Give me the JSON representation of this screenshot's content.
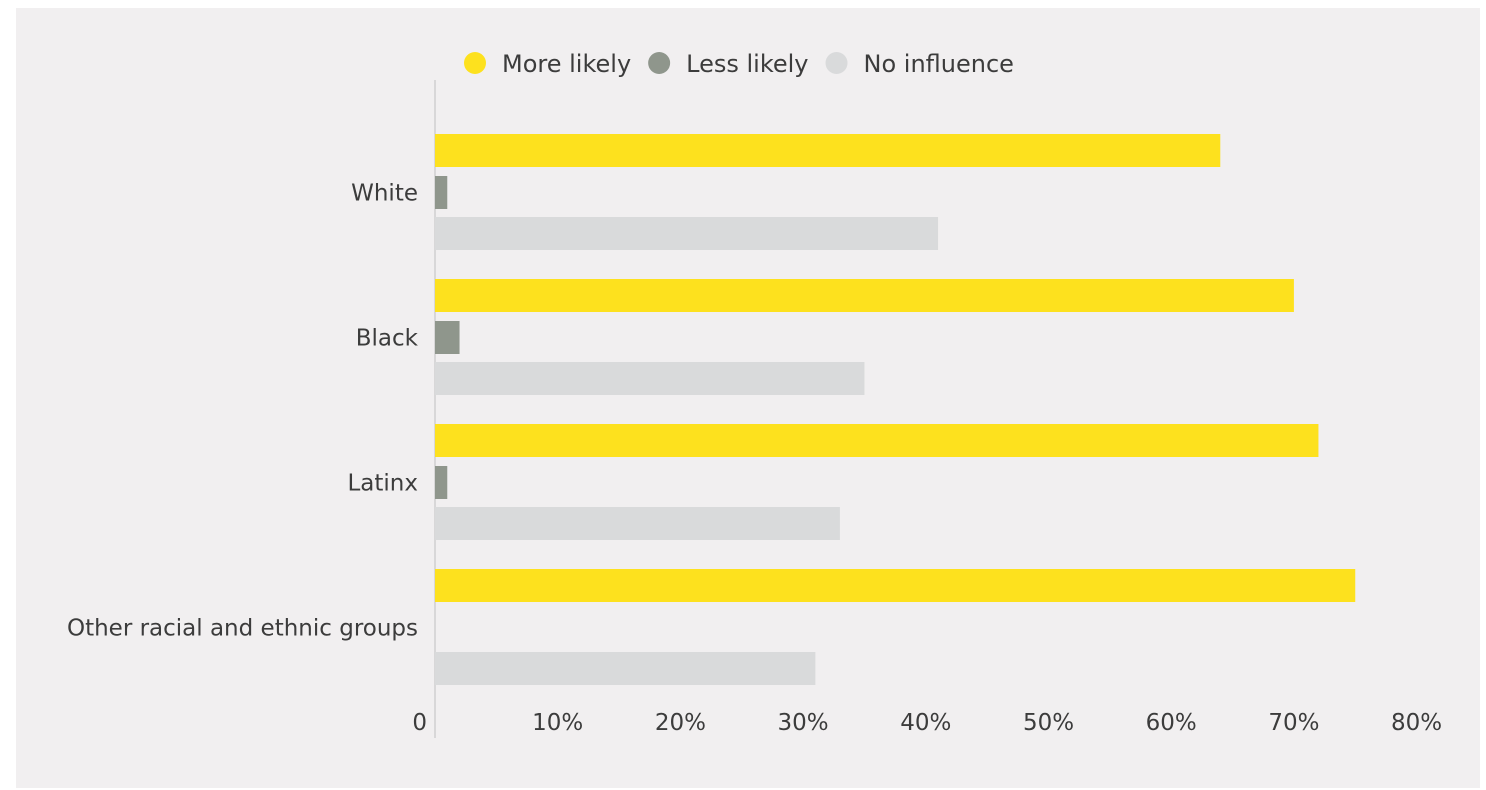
{
  "chart_data": {
    "type": "bar",
    "orientation": "horizontal",
    "categories": [
      "White",
      "Black",
      "Latinx",
      "Other racial and ethnic groups"
    ],
    "series": [
      {
        "name": "More likely",
        "color": "#fde11e",
        "values": [
          64,
          70,
          72,
          75
        ]
      },
      {
        "name": "Less likely",
        "color": "#8f968c",
        "values": [
          1,
          2,
          1,
          0
        ]
      },
      {
        "name": "No influence",
        "color": "#d9dadb",
        "values": [
          41,
          35,
          33,
          31
        ]
      }
    ],
    "xlim": [
      0,
      80
    ],
    "xticks": [
      {
        "value": 0,
        "label": "0"
      },
      {
        "value": 10,
        "label": "10%"
      },
      {
        "value": 20,
        "label": "20%"
      },
      {
        "value": 30,
        "label": "30%"
      },
      {
        "value": 40,
        "label": "40%"
      },
      {
        "value": 50,
        "label": "50%"
      },
      {
        "value": 60,
        "label": "60%"
      },
      {
        "value": 70,
        "label": "70%"
      },
      {
        "value": 80,
        "label": "80%"
      }
    ],
    "legend_position": "top",
    "grid": false,
    "title": "",
    "xlabel": "",
    "ylabel": ""
  }
}
